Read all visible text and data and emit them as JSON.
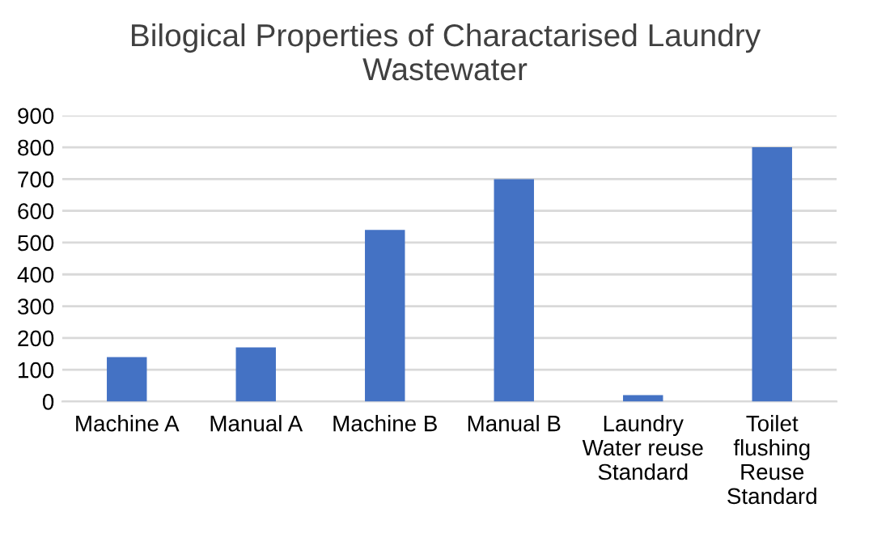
{
  "chart_data": {
    "type": "bar",
    "title": "Bilogical Properties of Charactarised Laundry Wastewater",
    "categories": [
      "Machine A",
      "Manual A",
      "Machine B",
      "Manual B",
      "Laundry Water reuse Standard",
      "Toilet flushing Reuse Standard"
    ],
    "values": [
      140,
      170,
      540,
      700,
      20,
      800
    ],
    "color": "#4472c4",
    "ylim": [
      0,
      900
    ],
    "yticks": [
      0,
      100,
      200,
      300,
      400,
      500,
      600,
      700,
      800,
      900
    ],
    "grid": "y"
  }
}
